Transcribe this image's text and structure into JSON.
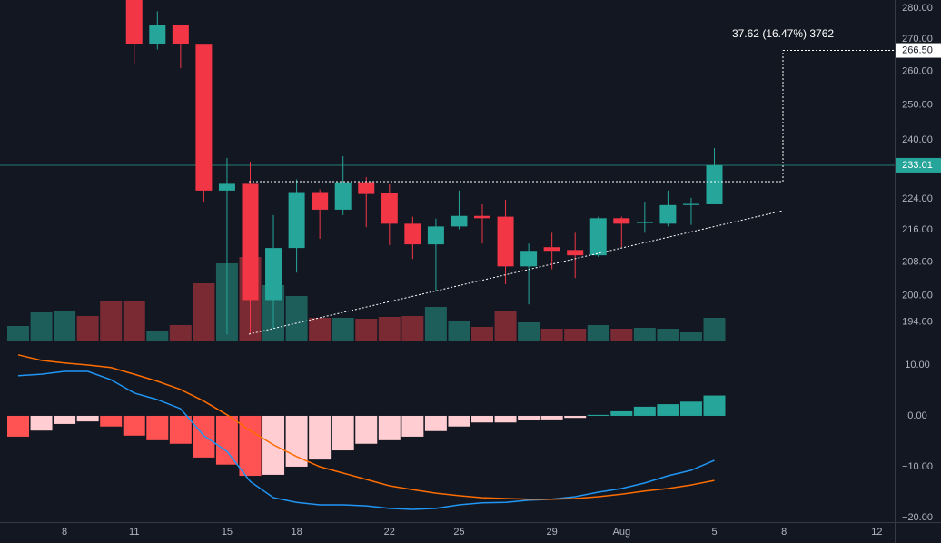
{
  "chart_data": {
    "type": "candlestick",
    "categories": [
      null,
      null,
      "8",
      null,
      null,
      "11",
      null,
      null,
      null,
      "15",
      null,
      null,
      "18",
      null,
      null,
      null,
      "22",
      null,
      null,
      "25",
      null,
      null,
      null,
      "29",
      null,
      null,
      "Aug",
      null,
      null,
      null,
      "5",
      null,
      null,
      "8",
      null,
      null,
      null,
      "12"
    ],
    "open": [
      null,
      null,
      null,
      null,
      null,
      286,
      268.6,
      274.5,
      268.3,
      226.2,
      228,
      199,
      211.5,
      225.8,
      221.2,
      228.4,
      225.5,
      217.6,
      212.4,
      216.9,
      219.6,
      219.4,
      207,
      211.7,
      211,
      209.7,
      219,
      217.8,
      217.6,
      222.4,
      222.6,
      null,
      null,
      null,
      null,
      null,
      null,
      null
    ],
    "high": [
      null,
      null,
      null,
      null,
      null,
      292,
      279,
      274.5,
      268.3,
      235,
      234,
      219.8,
      229.2,
      226.5,
      235.5,
      229.8,
      227.9,
      219.4,
      218.9,
      226.2,
      222.6,
      223.8,
      212.6,
      215.3,
      215.3,
      219.4,
      219.4,
      223.3,
      226.2,
      224.3,
      237.7,
      null,
      null,
      null,
      null,
      null,
      null,
      null
    ],
    "low": [
      null,
      null,
      null,
      null,
      null,
      262,
      266.8,
      261,
      223.3,
      191.2,
      191.2,
      192.5,
      205.5,
      213.8,
      219.8,
      216.7,
      212.2,
      208.8,
      201.2,
      216.2,
      212.6,
      202.7,
      198,
      206.3,
      204.2,
      209.3,
      211.7,
      215.3,
      216.9,
      217.3,
      222.6,
      null,
      null,
      null,
      null,
      null,
      null,
      null
    ],
    "close": [
      null,
      null,
      null,
      null,
      null,
      268.6,
      274.5,
      268.6,
      226.2,
      228,
      199,
      211.5,
      225.8,
      221.2,
      228.4,
      225.3,
      217.6,
      212.4,
      216.9,
      219.6,
      219,
      207,
      210.8,
      210.8,
      209.7,
      219,
      217.6,
      218,
      222.4,
      222.7,
      233.01,
      null,
      null,
      null,
      null,
      null,
      null,
      null
    ],
    "up_color": "#26a69a",
    "down_color": "#f23645",
    "log_scale": true,
    "ylim": [
      189.8,
      282.7
    ],
    "yticks": [
      {
        "value": 194,
        "label": "194.00"
      },
      {
        "value": 200,
        "label": "200.00"
      },
      {
        "value": 208,
        "label": "208.00"
      },
      {
        "value": 216,
        "label": "216.00"
      },
      {
        "value": 224,
        "label": "224.00"
      },
      {
        "value": 240,
        "label": "240.00"
      },
      {
        "value": 250,
        "label": "250.00"
      },
      {
        "value": 260,
        "label": "260.00"
      },
      {
        "value": 270,
        "label": "270.00"
      },
      {
        "value": 280,
        "label": "280.00"
      }
    ],
    "last_price": 233.01,
    "target_price": {
      "value": 266.5,
      "label": "266.50"
    },
    "measure_label": "37.62 (16.47%) 3762",
    "volume": {
      "values": [
        16,
        31,
        33,
        27,
        43,
        43,
        11,
        17,
        63,
        85,
        92,
        61,
        49,
        25,
        25,
        24,
        26,
        27,
        37,
        22,
        15,
        32,
        20,
        13,
        13,
        17,
        13,
        14,
        13,
        9,
        25,
        null,
        null,
        null,
        null,
        null,
        null,
        null
      ],
      "colors": [
        "#1d5e5a",
        "#1d5e5a",
        "#1d5e5a",
        "#7a2a33",
        "#7a2a33",
        "#7a2a33",
        "#1d5e5a",
        "#7a2a33",
        "#7a2a33",
        "#1d5e5a",
        "#7a2a33",
        "#1d5e5a",
        "#1d5e5a",
        "#7a2a33",
        "#1d5e5a",
        "#7a2a33",
        "#7a2a33",
        "#7a2a33",
        "#1d5e5a",
        "#1d5e5a",
        "#7a2a33",
        "#7a2a33",
        "#1d5e5a",
        "#7a2a33",
        "#7a2a33",
        "#1d5e5a",
        "#7a2a33",
        "#1d5e5a",
        "#1d5e5a",
        "#1d5e5a",
        "#1d5e5a",
        null,
        null,
        null,
        null,
        null,
        null,
        null
      ]
    },
    "macd": {
      "ylim": [
        -20.9,
        14.46
      ],
      "yticks": [
        {
          "value": 10,
          "label": "10.00"
        },
        {
          "value": 0,
          "label": "0.00"
        },
        {
          "value": -10,
          "label": "−10.00"
        },
        {
          "value": -20,
          "label": "−20.00"
        }
      ],
      "histogram": {
        "values": [
          -4.1,
          -2.9,
          -1.6,
          -1.1,
          -2.1,
          -3.9,
          -4.8,
          -5.5,
          -8.2,
          -9.6,
          -11.8,
          -11.6,
          -10,
          -8.6,
          -6.8,
          -5.5,
          -4.8,
          -4.1,
          -3,
          -2.1,
          -1.3,
          -1.3,
          -0.9,
          -0.7,
          -0.4,
          0.2,
          0.9,
          1.8,
          2.3,
          2.8,
          4.0,
          null,
          null,
          null,
          null,
          null,
          null,
          null
        ],
        "colors": [
          "#ff5252",
          "#ffcdd2",
          "#ffcdd2",
          "#ffcdd2",
          "#ff5252",
          "#ff5252",
          "#ff5252",
          "#ff5252",
          "#ff5252",
          "#ff5252",
          "#ff5252",
          "#ffcdd2",
          "#ffcdd2",
          "#ffcdd2",
          "#ffcdd2",
          "#ffcdd2",
          "#ffcdd2",
          "#ffcdd2",
          "#ffcdd2",
          "#ffcdd2",
          "#ffcdd2",
          "#ffcdd2",
          "#ffcdd2",
          "#ffcdd2",
          "#ffcdd2",
          "#26a69a",
          "#26a69a",
          "#26a69a",
          "#26a69a",
          "#26a69a",
          "#26a69a",
          null,
          null,
          null,
          null,
          null,
          null,
          null
        ]
      },
      "series": [
        {
          "color": "#2196f3",
          "values": [
            7.9,
            8.2,
            8.75,
            8.75,
            7.1,
            4.5,
            3.2,
            1.4,
            -3.9,
            -7,
            -12.9,
            -16.1,
            -17,
            -17.5,
            -17.5,
            -17.7,
            -18.2,
            -18.4,
            -18.2,
            -17.5,
            -17.1,
            -17,
            -16.6,
            -16.4,
            -15.9,
            -15,
            -14.3,
            -13.2,
            -11.8,
            -10.7,
            -8.75,
            null,
            null,
            null,
            null,
            null,
            null,
            null
          ]
        },
        {
          "color": "#ff6d00",
          "values": [
            12,
            10.9,
            10.4,
            10,
            9.5,
            8.2,
            6.8,
            5.2,
            2.9,
            0.2,
            -2.9,
            -5.7,
            -8,
            -10,
            -11.25,
            -12.5,
            -13.75,
            -14.5,
            -15.2,
            -15.7,
            -16.1,
            -16.25,
            -16.4,
            -16.4,
            -16.25,
            -15.9,
            -15.4,
            -14.8,
            -14.3,
            -13.6,
            -12.7,
            null,
            null,
            null,
            null,
            null,
            null,
            null
          ]
        }
      ]
    }
  }
}
